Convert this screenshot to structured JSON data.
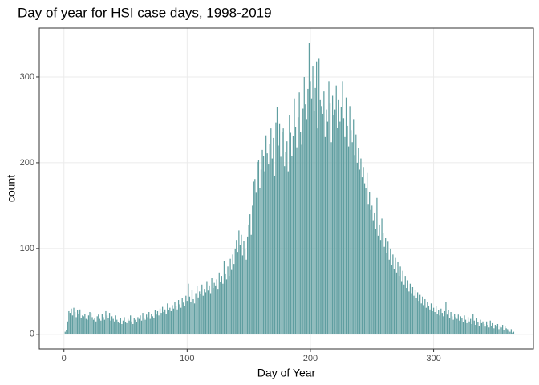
{
  "chart_data": {
    "type": "histogram",
    "title": "Day of year for HSI case days, 1998-2019",
    "xlabel": "Day of Year",
    "ylabel": "count",
    "color": "#5f9ea0",
    "xlim": [
      -20,
      381
    ],
    "ylim": [
      -17,
      357
    ],
    "xticks": [
      0,
      100,
      200,
      300
    ],
    "yticks": [
      0,
      100,
      200,
      300
    ],
    "grid": true,
    "bins": [
      0.5,
      1.5,
      2.5,
      3.5,
      4.5,
      5.5,
      6.5,
      7.5,
      8.5,
      9.5,
      10.5,
      11.5,
      12.5,
      13.5,
      14.5,
      15.5,
      16.5,
      17.5,
      18.5,
      19.5,
      20.5,
      21.5,
      22.5,
      23.5,
      24.5,
      25.5,
      26.5,
      27.5,
      28.5,
      29.5,
      30.5,
      31.5,
      32.5,
      33.5,
      34.5,
      35.5,
      36.5,
      37.5,
      38.5,
      39.5,
      40.5,
      41.5,
      42.5,
      43.5,
      44.5,
      45.5,
      46.5,
      47.5,
      48.5,
      49.5,
      50.5,
      51.5,
      52.5,
      53.5,
      54.5,
      55.5,
      56.5,
      57.5,
      58.5,
      59.5,
      60.5,
      61.5,
      62.5,
      63.5,
      64.5,
      65.5,
      66.5,
      67.5,
      68.5,
      69.5,
      70.5,
      71.5,
      72.5,
      73.5,
      74.5,
      75.5,
      76.5,
      77.5,
      78.5,
      79.5,
      80.5,
      81.5,
      82.5,
      83.5,
      84.5,
      85.5,
      86.5,
      87.5,
      88.5,
      89.5,
      90.5,
      91.5,
      92.5,
      93.5,
      94.5,
      95.5,
      96.5,
      97.5,
      98.5,
      99.5,
      100.5,
      101.5,
      102.5,
      103.5,
      104.5,
      105.5,
      106.5,
      107.5,
      108.5,
      109.5,
      110.5,
      111.5,
      112.5,
      113.5,
      114.5,
      115.5,
      116.5,
      117.5,
      118.5,
      119.5,
      120.5,
      121.5,
      122.5,
      123.5,
      124.5,
      125.5,
      126.5,
      127.5,
      128.5,
      129.5,
      130.5,
      131.5,
      132.5,
      133.5,
      134.5,
      135.5,
      136.5,
      137.5,
      138.5,
      139.5,
      140.5,
      141.5,
      142.5,
      143.5,
      144.5,
      145.5,
      146.5,
      147.5,
      148.5,
      149.5,
      150.5,
      151.5,
      152.5,
      153.5,
      154.5,
      155.5,
      156.5,
      157.5,
      158.5,
      159.5,
      160.5,
      161.5,
      162.5,
      163.5,
      164.5,
      165.5,
      166.5,
      167.5,
      168.5,
      169.5,
      170.5,
      171.5,
      172.5,
      173.5,
      174.5,
      175.5,
      176.5,
      177.5,
      178.5,
      179.5,
      180.5,
      181.5,
      182.5,
      183.5,
      184.5,
      185.5,
      186.5,
      187.5,
      188.5,
      189.5,
      190.5,
      191.5,
      192.5,
      193.5,
      194.5,
      195.5,
      196.5,
      197.5,
      198.5,
      199.5,
      200.5,
      201.5,
      202.5,
      203.5,
      204.5,
      205.5,
      206.5,
      207.5,
      208.5,
      209.5,
      210.5,
      211.5,
      212.5,
      213.5,
      214.5,
      215.5,
      216.5,
      217.5,
      218.5,
      219.5,
      220.5,
      221.5,
      222.5,
      223.5,
      224.5,
      225.5,
      226.5,
      227.5,
      228.5,
      229.5,
      230.5,
      231.5,
      232.5,
      233.5,
      234.5,
      235.5,
      236.5,
      237.5,
      238.5,
      239.5,
      240.5,
      241.5,
      242.5,
      243.5,
      244.5,
      245.5,
      246.5,
      247.5,
      248.5,
      249.5,
      250.5,
      251.5,
      252.5,
      253.5,
      254.5,
      255.5,
      256.5,
      257.5,
      258.5,
      259.5,
      260.5,
      261.5,
      262.5,
      263.5,
      264.5,
      265.5,
      266.5,
      267.5,
      268.5,
      269.5,
      270.5,
      271.5,
      272.5,
      273.5,
      274.5,
      275.5,
      276.5,
      277.5,
      278.5,
      279.5,
      280.5,
      281.5,
      282.5,
      283.5,
      284.5,
      285.5,
      286.5,
      287.5,
      288.5,
      289.5,
      290.5,
      291.5,
      292.5,
      293.5,
      294.5,
      295.5,
      296.5,
      297.5,
      298.5,
      299.5,
      300.5,
      301.5,
      302.5,
      303.5,
      304.5,
      305.5,
      306.5,
      307.5,
      308.5,
      309.5,
      310.5,
      311.5,
      312.5,
      313.5,
      314.5,
      315.5,
      316.5,
      317.5,
      318.5,
      319.5,
      320.5,
      321.5,
      322.5,
      323.5,
      324.5,
      325.5,
      326.5,
      327.5,
      328.5,
      329.5,
      330.5,
      331.5,
      332.5,
      333.5,
      334.5,
      335.5,
      336.5,
      337.5,
      338.5,
      339.5,
      340.5,
      341.5,
      342.5,
      343.5,
      344.5,
      345.5,
      346.5,
      347.5,
      348.5,
      349.5,
      350.5,
      351.5,
      352.5,
      353.5,
      354.5,
      355.5,
      356.5,
      357.5,
      358.5,
      359.5,
      360.5,
      361.5,
      362.5,
      363.5,
      364.5,
      365.5
    ],
    "values": [
      3,
      5,
      15,
      27,
      25,
      30,
      22,
      31,
      26,
      20,
      28,
      24,
      29,
      19,
      22,
      21,
      24,
      18,
      17,
      22,
      26,
      25,
      20,
      17,
      19,
      15,
      21,
      23,
      18,
      16,
      24,
      20,
      17,
      27,
      22,
      19,
      25,
      16,
      21,
      18,
      15,
      22,
      17,
      14,
      13,
      19,
      12,
      16,
      20,
      14,
      13,
      18,
      16,
      22,
      15,
      12,
      19,
      17,
      14,
      20,
      18,
      22,
      16,
      25,
      19,
      17,
      23,
      20,
      26,
      18,
      24,
      21,
      19,
      28,
      23,
      27,
      22,
      30,
      25,
      32,
      26,
      29,
      24,
      36,
      28,
      31,
      27,
      34,
      30,
      38,
      33,
      29,
      40,
      35,
      31,
      42,
      37,
      33,
      45,
      39,
      59,
      44,
      38,
      52,
      41,
      36,
      48,
      56,
      43,
      50,
      47,
      58,
      45,
      53,
      49,
      62,
      51,
      57,
      48,
      66,
      54,
      60,
      57,
      64,
      53,
      72,
      61,
      68,
      59,
      85,
      71,
      64,
      79,
      68,
      88,
      75,
      93,
      82,
      100,
      110,
      96,
      121,
      104,
      116,
      92,
      109,
      99,
      87,
      114,
      128,
      140,
      116,
      150,
      178,
      181,
      165,
      201,
      203,
      170,
      192,
      215,
      208,
      190,
      232,
      211,
      198,
      222,
      240,
      205,
      229,
      185,
      247,
      265,
      220,
      246,
      207,
      236,
      240,
      196,
      213,
      225,
      190,
      256,
      235,
      208,
      231,
      275,
      242,
      218,
      253,
      282,
      236,
      221,
      263,
      300,
      268,
      251,
      286,
      340,
      295,
      275,
      313,
      260,
      287,
      318,
      240,
      322,
      273,
      266,
      257,
      283,
      230,
      262,
      248,
      295,
      269,
      224,
      278,
      256,
      262,
      290,
      241,
      273,
      248,
      265,
      295,
      252,
      230,
      276,
      243,
      219,
      266,
      238,
      224,
      251,
      209,
      233,
      200,
      217,
      192,
      205,
      183,
      195,
      176,
      170,
      188,
      152,
      166,
      145,
      150,
      133,
      142,
      123,
      159,
      115,
      128,
      110,
      135,
      118,
      102,
      112,
      95,
      108,
      87,
      100,
      81,
      93,
      76,
      89,
      72,
      84,
      68,
      79,
      62,
      74,
      58,
      68,
      54,
      63,
      50,
      59,
      48,
      55,
      45,
      52,
      42,
      49,
      39,
      46,
      36,
      44,
      34,
      41,
      31,
      38,
      33,
      29,
      36,
      27,
      31,
      26,
      33,
      24,
      28,
      22,
      30,
      25,
      21,
      27,
      38,
      23,
      28,
      19,
      26,
      21,
      17,
      24,
      20,
      18,
      23,
      16,
      21,
      19,
      14,
      22,
      17,
      13,
      20,
      15,
      18,
      12,
      24,
      16,
      11,
      19,
      14,
      10,
      17,
      13,
      15,
      12,
      9,
      15,
      11,
      8,
      16,
      10,
      13,
      7,
      11,
      9,
      12,
      6,
      10,
      8,
      11,
      5,
      9,
      7,
      6,
      4,
      3,
      6,
      2,
      3
    ]
  }
}
